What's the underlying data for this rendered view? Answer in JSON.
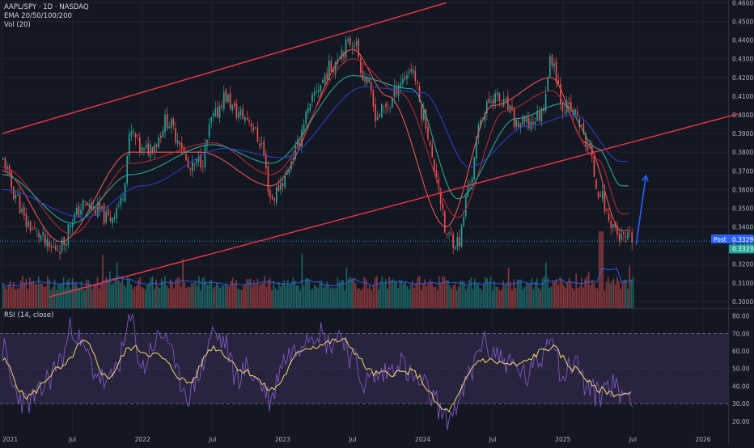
{
  "legend": {
    "symbol": "AAPL/SPY · 1D · NASDAQ",
    "ema": "EMA 20/50/100/200",
    "vol": "Vol (20)"
  },
  "rsi": {
    "label": "RSI (14, close)"
  },
  "price_labels": {
    "post_tag": "Post",
    "post_value": "0.3329",
    "last_value": "0.3323"
  },
  "colors": {
    "background": "#131722",
    "channel": "#f23645",
    "arrow": "#2962ff",
    "ema20": "#ef5350",
    "ema50": "#b22833",
    "ema100": "#26a69a",
    "ema200": "#2b3fc4",
    "candle_up": "#26a69a",
    "candle_down": "#ef5350",
    "rsi_line": "#7e57c2",
    "rsi_ma": "#f5d76e",
    "rsi_band": "#2b2640"
  },
  "chart_data": [
    {
      "type": "candlestick",
      "title": "AAPL/SPY · 1D · NASDAQ",
      "x_ticks": [
        "2021",
        "Jul",
        "2022",
        "Jul",
        "2023",
        "Jul",
        "2024",
        "Jul",
        "2025",
        "Jul",
        "2026"
      ],
      "y_ticks": [
        "0.4600",
        "0.4500",
        "0.4400",
        "0.4300",
        "0.4200",
        "0.4100",
        "0.4000",
        "0.3900",
        "0.3800",
        "0.3700",
        "0.3600",
        "0.3500",
        "0.3400",
        "0.3300",
        "0.3200",
        "0.3100",
        "0.3000"
      ],
      "ylim": [
        0.2965,
        0.4615
      ],
      "last_price": 0.3323,
      "post_price": 0.3329,
      "close_anchors": [
        [
          "2021-01",
          0.375
        ],
        [
          "2021-02",
          0.358
        ],
        [
          "2021-03",
          0.342
        ],
        [
          "2021-04",
          0.336
        ],
        [
          "2021-05",
          0.328
        ],
        [
          "2021-06",
          0.33
        ],
        [
          "2021-07",
          0.345
        ],
        [
          "2021-08",
          0.352
        ],
        [
          "2021-09",
          0.349
        ],
        [
          "2021-10",
          0.344
        ],
        [
          "2021-11",
          0.352
        ],
        [
          "2021-12",
          0.39
        ],
        [
          "2022-01",
          0.38
        ],
        [
          "2022-02",
          0.385
        ],
        [
          "2022-03",
          0.397
        ],
        [
          "2022-04",
          0.388
        ],
        [
          "2022-05",
          0.37
        ],
        [
          "2022-06",
          0.376
        ],
        [
          "2022-07",
          0.398
        ],
        [
          "2022-08",
          0.41
        ],
        [
          "2022-09",
          0.401
        ],
        [
          "2022-10",
          0.398
        ],
        [
          "2022-11",
          0.386
        ],
        [
          "2022-12",
          0.355
        ],
        [
          "2023-01",
          0.365
        ],
        [
          "2023-02",
          0.38
        ],
        [
          "2023-03",
          0.4
        ],
        [
          "2023-04",
          0.415
        ],
        [
          "2023-05",
          0.425
        ],
        [
          "2023-06",
          0.435
        ],
        [
          "2023-07",
          0.44
        ],
        [
          "2023-08",
          0.42
        ],
        [
          "2023-09",
          0.4
        ],
        [
          "2023-10",
          0.405
        ],
        [
          "2023-11",
          0.418
        ],
        [
          "2023-12",
          0.425
        ],
        [
          "2024-01",
          0.4
        ],
        [
          "2024-02",
          0.37
        ],
        [
          "2024-03",
          0.335
        ],
        [
          "2024-04",
          0.332
        ],
        [
          "2024-05",
          0.365
        ],
        [
          "2024-06",
          0.4
        ],
        [
          "2024-07",
          0.41
        ],
        [
          "2024-08",
          0.405
        ],
        [
          "2024-09",
          0.395
        ],
        [
          "2024-10",
          0.395
        ],
        [
          "2024-11",
          0.4
        ],
        [
          "2024-12",
          0.43
        ],
        [
          "2025-01",
          0.405
        ],
        [
          "2025-02",
          0.4
        ],
        [
          "2025-03",
          0.385
        ],
        [
          "2025-04",
          0.36
        ],
        [
          "2025-05",
          0.343
        ],
        [
          "2025-06",
          0.333
        ]
      ],
      "ema_anchors": {
        "ema20": [
          [
            "2021-01",
            0.37
          ],
          [
            "2021-06",
            0.332
          ],
          [
            "2021-12",
            0.38
          ],
          [
            "2022-06",
            0.38
          ],
          [
            "2022-12",
            0.362
          ],
          [
            "2023-07",
            0.435
          ],
          [
            "2023-10",
            0.41
          ],
          [
            "2024-03",
            0.34
          ],
          [
            "2024-07",
            0.405
          ],
          [
            "2024-12",
            0.42
          ],
          [
            "2025-03",
            0.385
          ],
          [
            "2025-06",
            0.338
          ]
        ],
        "ema50": [
          [
            "2021-01",
            0.372
          ],
          [
            "2021-07",
            0.336
          ],
          [
            "2021-12",
            0.374
          ],
          [
            "2022-07",
            0.385
          ],
          [
            "2022-12",
            0.368
          ],
          [
            "2023-07",
            0.43
          ],
          [
            "2023-11",
            0.412
          ],
          [
            "2024-04",
            0.345
          ],
          [
            "2024-08",
            0.402
          ],
          [
            "2024-12",
            0.413
          ],
          [
            "2025-04",
            0.376
          ],
          [
            "2025-06",
            0.347
          ]
        ],
        "ema100": [
          [
            "2021-01",
            0.368
          ],
          [
            "2021-07",
            0.342
          ],
          [
            "2021-12",
            0.368
          ],
          [
            "2022-07",
            0.384
          ],
          [
            "2022-12",
            0.374
          ],
          [
            "2023-07",
            0.421
          ],
          [
            "2023-12",
            0.414
          ],
          [
            "2024-04",
            0.355
          ],
          [
            "2024-09",
            0.398
          ],
          [
            "2025-01",
            0.406
          ],
          [
            "2025-04",
            0.382
          ],
          [
            "2025-06",
            0.362
          ]
        ],
        "ema200": [
          [
            "2021-01",
            0.36
          ],
          [
            "2021-08",
            0.345
          ],
          [
            "2022-01",
            0.362
          ],
          [
            "2022-08",
            0.382
          ],
          [
            "2023-01",
            0.377
          ],
          [
            "2023-08",
            0.415
          ],
          [
            "2024-01",
            0.412
          ],
          [
            "2024-05",
            0.372
          ],
          [
            "2024-10",
            0.394
          ],
          [
            "2025-02",
            0.4
          ],
          [
            "2025-06",
            0.375
          ]
        ]
      },
      "channel": {
        "upper": [
          [
            "2021-01",
            0.39
          ],
          [
            "2023-07",
            0.445
          ],
          [
            "2024-03",
            0.46
          ]
        ],
        "lower": [
          [
            "2021-05",
            0.3025
          ],
          [
            "2023-01",
            0.3395
          ],
          [
            "2024-03",
            0.3595
          ],
          [
            "2026-04",
            0.4005
          ]
        ]
      },
      "arrow": {
        "from": [
          "2025-07",
          0.3305
        ],
        "to": [
          "2025-07",
          0.3675
        ]
      }
    },
    {
      "type": "line",
      "title": "RSI (14, close)",
      "y_ticks": [
        "80.00",
        "70.00",
        "60.00",
        "50.00",
        "40.00",
        "30.00",
        "20.00"
      ],
      "ylim": [
        13,
        84
      ],
      "bands": [
        30,
        70
      ],
      "rsi_anchors": [
        [
          "2021-01",
          62
        ],
        [
          "2021-02",
          38
        ],
        [
          "2021-03",
          30
        ],
        [
          "2021-04",
          34
        ],
        [
          "2021-05",
          45
        ],
        [
          "2021-06",
          55
        ],
        [
          "2021-07",
          74
        ],
        [
          "2021-08",
          60
        ],
        [
          "2021-09",
          48
        ],
        [
          "2021-10",
          40
        ],
        [
          "2021-11",
          55
        ],
        [
          "2021-12",
          77
        ],
        [
          "2022-01",
          50
        ],
        [
          "2022-02",
          65
        ],
        [
          "2022-03",
          70
        ],
        [
          "2022-04",
          45
        ],
        [
          "2022-05",
          35
        ],
        [
          "2022-06",
          50
        ],
        [
          "2022-07",
          70
        ],
        [
          "2022-08",
          65
        ],
        [
          "2022-09",
          45
        ],
        [
          "2022-10",
          50
        ],
        [
          "2022-11",
          42
        ],
        [
          "2022-12",
          32
        ],
        [
          "2023-01",
          55
        ],
        [
          "2023-02",
          60
        ],
        [
          "2023-03",
          70
        ],
        [
          "2023-04",
          72
        ],
        [
          "2023-05",
          64
        ],
        [
          "2023-06",
          70
        ],
        [
          "2023-07",
          55
        ],
        [
          "2023-08",
          42
        ],
        [
          "2023-09",
          45
        ],
        [
          "2023-10",
          48
        ],
        [
          "2023-11",
          55
        ],
        [
          "2023-12",
          45
        ],
        [
          "2024-01",
          40
        ],
        [
          "2024-02",
          32
        ],
        [
          "2024-03",
          20
        ],
        [
          "2024-04",
          30
        ],
        [
          "2024-05",
          45
        ],
        [
          "2024-06",
          65
        ],
        [
          "2024-07",
          60
        ],
        [
          "2024-08",
          55
        ],
        [
          "2024-09",
          50
        ],
        [
          "2024-10",
          45
        ],
        [
          "2024-11",
          55
        ],
        [
          "2024-12",
          72
        ],
        [
          "2025-01",
          45
        ],
        [
          "2025-02",
          55
        ],
        [
          "2025-03",
          40
        ],
        [
          "2025-04",
          35
        ],
        [
          "2025-05",
          42
        ],
        [
          "2025-06",
          36
        ]
      ],
      "rsi_ma_anchors": [
        [
          "2021-01",
          55
        ],
        [
          "2021-03",
          34
        ],
        [
          "2021-06",
          50
        ],
        [
          "2021-08",
          65
        ],
        [
          "2021-10",
          45
        ],
        [
          "2021-12",
          62
        ],
        [
          "2022-02",
          58
        ],
        [
          "2022-05",
          42
        ],
        [
          "2022-07",
          62
        ],
        [
          "2022-10",
          48
        ],
        [
          "2022-12",
          38
        ],
        [
          "2023-03",
          62
        ],
        [
          "2023-06",
          66
        ],
        [
          "2023-09",
          47
        ],
        [
          "2023-12",
          48
        ],
        [
          "2024-03",
          26
        ],
        [
          "2024-06",
          55
        ],
        [
          "2024-09",
          52
        ],
        [
          "2024-12",
          62
        ],
        [
          "2025-02",
          50
        ],
        [
          "2025-04",
          38
        ],
        [
          "2025-06",
          35
        ]
      ]
    }
  ]
}
